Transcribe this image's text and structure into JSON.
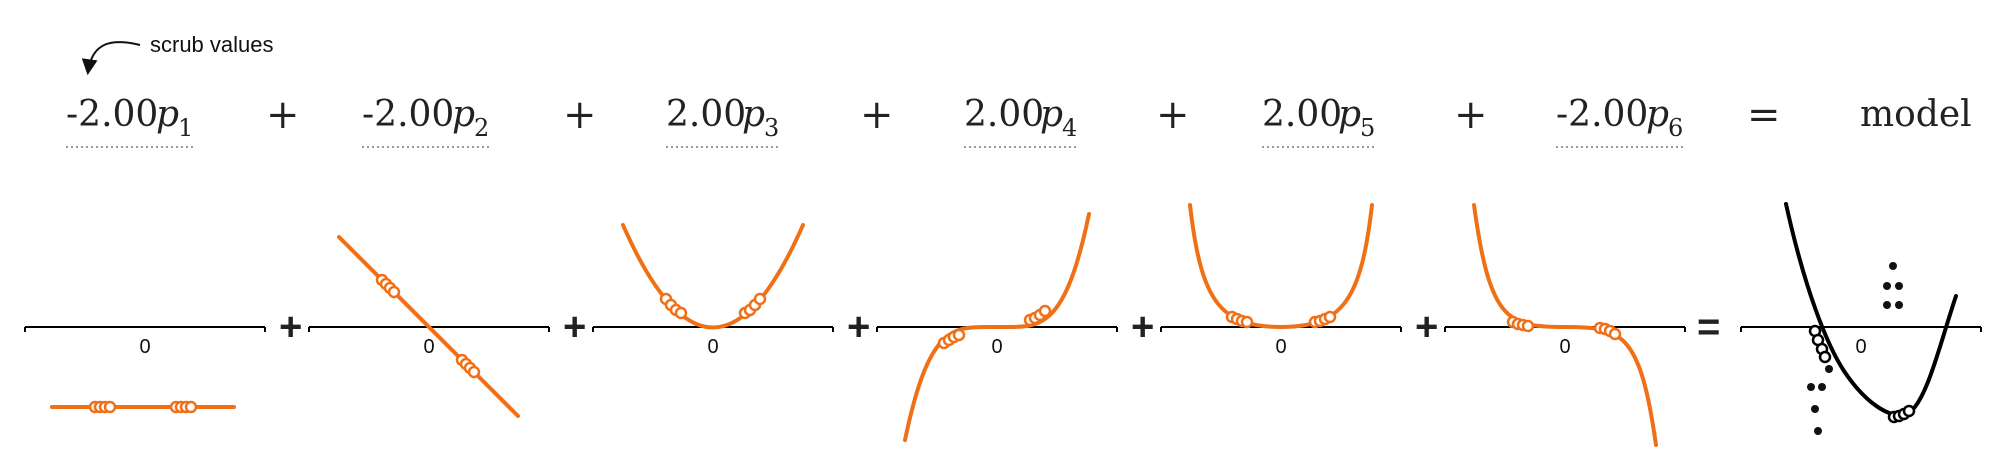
{
  "annotation": {
    "label": "scrub values"
  },
  "equation": {
    "terms": [
      {
        "coefficient": "-2.00",
        "variable": "p",
        "subscript": "1"
      },
      {
        "coefficient": "-2.00",
        "variable": "p",
        "subscript": "2"
      },
      {
        "coefficient": "2.00",
        "variable": "p",
        "subscript": "3"
      },
      {
        "coefficient": "2.00",
        "variable": "p",
        "subscript": "4"
      },
      {
        "coefficient": "2.00",
        "variable": "p",
        "subscript": "5"
      },
      {
        "coefficient": "-2.00",
        "variable": "p",
        "subscript": "6"
      }
    ],
    "plus_symbol": "+",
    "equals_symbol": "=",
    "result_label": "model"
  },
  "panels": {
    "tick_label": "0",
    "plus_symbol": "+",
    "equals_symbol": "="
  },
  "colors": {
    "basis_curve": "#f07018",
    "model_curve": "#000000",
    "axis": "#000000",
    "dotted_underline": "#9a9a9a",
    "sample_fill": "#ffffff",
    "data_points": "#111111"
  }
}
